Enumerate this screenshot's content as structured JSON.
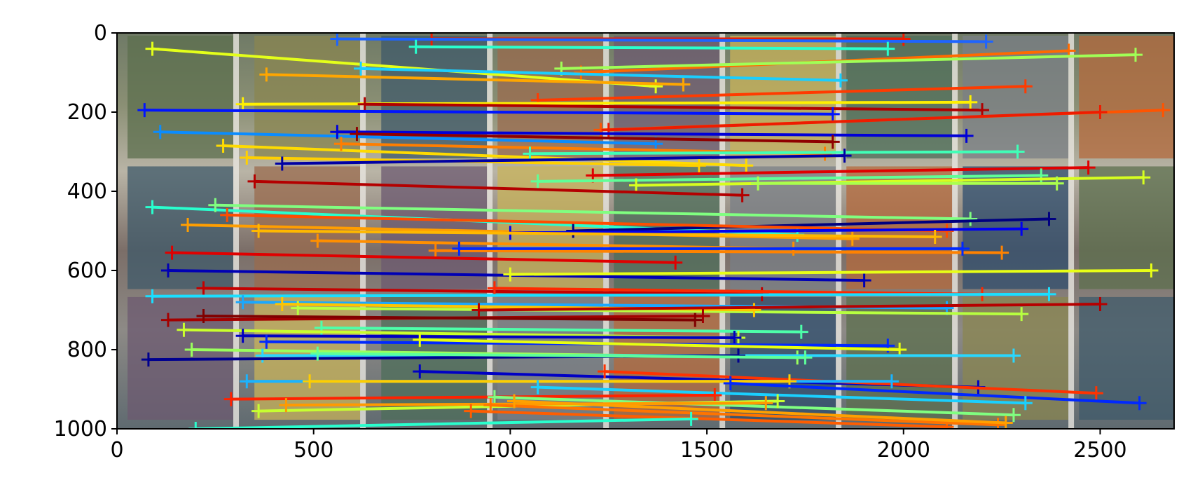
{
  "chart_data": {
    "type": "line",
    "title": "",
    "xlabel": "",
    "ylabel": "",
    "xlim": [
      0,
      2688
    ],
    "ylim": [
      1000,
      0
    ],
    "y_inverted": true,
    "grid": false,
    "x_ticks": [
      0,
      500,
      1000,
      1500,
      2000,
      2500
    ],
    "y_ticks": [
      0,
      200,
      400,
      600,
      800,
      1000
    ],
    "x_tick_labels": [
      "0",
      "500",
      "1000",
      "1500",
      "2000",
      "2500"
    ],
    "y_tick_labels": [
      "0",
      "200",
      "400",
      "600",
      "800",
      "1000"
    ],
    "background": "photo of wall with colorful window panels",
    "matches": [
      {
        "x": [
          800,
          2000
        ],
        "y": [
          15,
          15
        ],
        "color": "#ee1c00"
      },
      {
        "x": [
          560,
          2210
        ],
        "y": [
          15,
          22
        ],
        "color": "#1e64ff"
      },
      {
        "x": [
          760,
          1960
        ],
        "y": [
          35,
          40
        ],
        "color": "#28ffce"
      },
      {
        "x": [
          90,
          1370
        ],
        "y": [
          40,
          135
        ],
        "color": "#e4ff1a"
      },
      {
        "x": [
          1180,
          2420
        ],
        "y": [
          100,
          45
        ],
        "color": "#ff6a00"
      },
      {
        "x": [
          1130,
          2590
        ],
        "y": [
          90,
          55
        ],
        "color": "#a0ff56"
      },
      {
        "x": [
          380,
          1440
        ],
        "y": [
          105,
          130
        ],
        "color": "#ffa600"
      },
      {
        "x": [
          1070,
          2310
        ],
        "y": [
          170,
          135
        ],
        "color": "#ff3b00"
      },
      {
        "x": [
          620,
          1840
        ],
        "y": [
          90,
          120
        ],
        "color": "#1aceff"
      },
      {
        "x": [
          320,
          2170
        ],
        "y": [
          180,
          175
        ],
        "color": "#fff000"
      },
      {
        "x": [
          630,
          2200
        ],
        "y": [
          180,
          195
        ],
        "color": "#b00000"
      },
      {
        "x": [
          70,
          1820
        ],
        "y": [
          195,
          205
        ],
        "color": "#0014ff"
      },
      {
        "x": [
          1230,
          2660
        ],
        "y": [
          245,
          195
        ],
        "color": "#ff5400"
      },
      {
        "x": [
          1250,
          2500
        ],
        "y": [
          245,
          200
        ],
        "color": "#ee1c00"
      },
      {
        "x": [
          110,
          1370
        ],
        "y": [
          250,
          280
        ],
        "color": "#0a8cff"
      },
      {
        "x": [
          560,
          2160
        ],
        "y": [
          250,
          260
        ],
        "color": "#0000d8"
      },
      {
        "x": [
          610,
          1820
        ],
        "y": [
          255,
          275
        ],
        "color": "#8f0000"
      },
      {
        "x": [
          270,
          1600
        ],
        "y": [
          285,
          335
        ],
        "color": "#ffdb00"
      },
      {
        "x": [
          570,
          1800
        ],
        "y": [
          280,
          305
        ],
        "color": "#ff7e00"
      },
      {
        "x": [
          330,
          1480
        ],
        "y": [
          315,
          335
        ],
        "color": "#ffd000"
      },
      {
        "x": [
          1050,
          2290
        ],
        "y": [
          305,
          300
        ],
        "color": "#40ffb7"
      },
      {
        "x": [
          420,
          1850
        ],
        "y": [
          330,
          310
        ],
        "color": "#0000a4"
      },
      {
        "x": [
          1210,
          2470
        ],
        "y": [
          360,
          340
        ],
        "color": "#e00000"
      },
      {
        "x": [
          1070,
          2350
        ],
        "y": [
          375,
          360
        ],
        "color": "#5fff97"
      },
      {
        "x": [
          1320,
          2610
        ],
        "y": [
          385,
          365
        ],
        "color": "#d7ff1f"
      },
      {
        "x": [
          1630,
          2390
        ],
        "y": [
          380,
          380
        ],
        "color": "#aaff4d"
      },
      {
        "x": [
          350,
          1590
        ],
        "y": [
          375,
          410
        ],
        "color": "#b40000"
      },
      {
        "x": [
          90,
          1730
        ],
        "y": [
          440,
          510
        ],
        "color": "#29ffce"
      },
      {
        "x": [
          250,
          2170
        ],
        "y": [
          435,
          470
        ],
        "color": "#80ff80"
      },
      {
        "x": [
          1160,
          2370
        ],
        "y": [
          500,
          470
        ],
        "color": "#000080"
      },
      {
        "x": [
          280,
          2110
        ],
        "y": [
          460,
          500
        ],
        "color": "#ff4d00"
      },
      {
        "x": [
          180,
          1870
        ],
        "y": [
          485,
          520
        ],
        "color": "#ff9e00"
      },
      {
        "x": [
          1000,
          2300
        ],
        "y": [
          505,
          495
        ],
        "color": "#0000f0"
      },
      {
        "x": [
          360,
          2080
        ],
        "y": [
          500,
          515
        ],
        "color": "#ffb800"
      },
      {
        "x": [
          510,
          1720
        ],
        "y": [
          525,
          545
        ],
        "color": "#ff8f00"
      },
      {
        "x": [
          810,
          2250
        ],
        "y": [
          550,
          555
        ],
        "color": "#ff8200"
      },
      {
        "x": [
          140,
          1420
        ],
        "y": [
          555,
          580
        ],
        "color": "#e00000"
      },
      {
        "x": [
          870,
          2150
        ],
        "y": [
          545,
          545
        ],
        "color": "#0028ff"
      },
      {
        "x": [
          130,
          1900
        ],
        "y": [
          600,
          625
        ],
        "color": "#0000b4"
      },
      {
        "x": [
          1000,
          2630
        ],
        "y": [
          610,
          600
        ],
        "color": "#e8ff16"
      },
      {
        "x": [
          220,
          1640
        ],
        "y": [
          645,
          660
        ],
        "color": "#c40000"
      },
      {
        "x": [
          960,
          2200
        ],
        "y": [
          645,
          660
        ],
        "color": "#ff2900"
      },
      {
        "x": [
          90,
          2370
        ],
        "y": [
          665,
          660
        ],
        "color": "#1adfff"
      },
      {
        "x": [
          320,
          2110
        ],
        "y": [
          680,
          695
        ],
        "color": "#1aa8ff"
      },
      {
        "x": [
          460,
          2300
        ],
        "y": [
          695,
          710
        ],
        "color": "#b7ff40"
      },
      {
        "x": [
          420,
          1620
        ],
        "y": [
          685,
          700
        ],
        "color": "#ffc400"
      },
      {
        "x": [
          920,
          2500
        ],
        "y": [
          700,
          685
        ],
        "color": "#b60000"
      },
      {
        "x": [
          130,
          1490
        ],
        "y": [
          725,
          715
        ],
        "color": "#a40000"
      },
      {
        "x": [
          220,
          1470
        ],
        "y": [
          715,
          725
        ],
        "color": "#800000"
      },
      {
        "x": [
          520,
          1740
        ],
        "y": [
          745,
          755
        ],
        "color": "#4dffaa"
      },
      {
        "x": [
          170,
          1580
        ],
        "y": [
          750,
          770
        ],
        "color": "#caff2d"
      },
      {
        "x": [
          320,
          1570
        ],
        "y": [
          765,
          770
        ],
        "color": "#0000c0"
      },
      {
        "x": [
          380,
          1960
        ],
        "y": [
          780,
          790
        ],
        "color": "#0028ff"
      },
      {
        "x": [
          770,
          1990
        ],
        "y": [
          775,
          800
        ],
        "color": "#e8ff10"
      },
      {
        "x": [
          190,
          1730
        ],
        "y": [
          800,
          820
        ],
        "color": "#9aff5d"
      },
      {
        "x": [
          370,
          2280
        ],
        "y": [
          815,
          815
        ],
        "color": "#29d7ff"
      },
      {
        "x": [
          80,
          1580
        ],
        "y": [
          825,
          815
        ],
        "color": "#00008f"
      },
      {
        "x": [
          510,
          1750
        ],
        "y": [
          810,
          820
        ],
        "color": "#5dff9a"
      },
      {
        "x": [
          770,
          2190
        ],
        "y": [
          855,
          895
        ],
        "color": "#0000c4"
      },
      {
        "x": [
          1240,
          2490
        ],
        "y": [
          855,
          910
        ],
        "color": "#ff3300"
      },
      {
        "x": [
          330,
          1970
        ],
        "y": [
          880,
          880
        ],
        "color": "#1ab4ff"
      },
      {
        "x": [
          490,
          1710
        ],
        "y": [
          880,
          880
        ],
        "color": "#ffcd00"
      },
      {
        "x": [
          1560,
          2600
        ],
        "y": [
          885,
          935
        ],
        "color": "#0028ff"
      },
      {
        "x": [
          1070,
          2310
        ],
        "y": [
          895,
          935
        ],
        "color": "#1ad0ff"
      },
      {
        "x": [
          290,
          1520
        ],
        "y": [
          925,
          915
        ],
        "color": "#ff2200"
      },
      {
        "x": [
          960,
          2280
        ],
        "y": [
          920,
          965
        ],
        "color": "#80ff80"
      },
      {
        "x": [
          360,
          1680
        ],
        "y": [
          955,
          930
        ],
        "color": "#c7ff30"
      },
      {
        "x": [
          430,
          1650
        ],
        "y": [
          940,
          935
        ],
        "color": "#ff9a00"
      },
      {
        "x": [
          900,
          2110
        ],
        "y": [
          955,
          995
        ],
        "color": "#ff5d00"
      },
      {
        "x": [
          950,
          2240
        ],
        "y": [
          940,
          990
        ],
        "color": "#ff7400"
      },
      {
        "x": [
          1010,
          2260
        ],
        "y": [
          930,
          985
        ],
        "color": "#ffa000"
      },
      {
        "x": [
          200,
          1460
        ],
        "y": [
          1000,
          975
        ],
        "color": "#29ffce"
      }
    ]
  }
}
